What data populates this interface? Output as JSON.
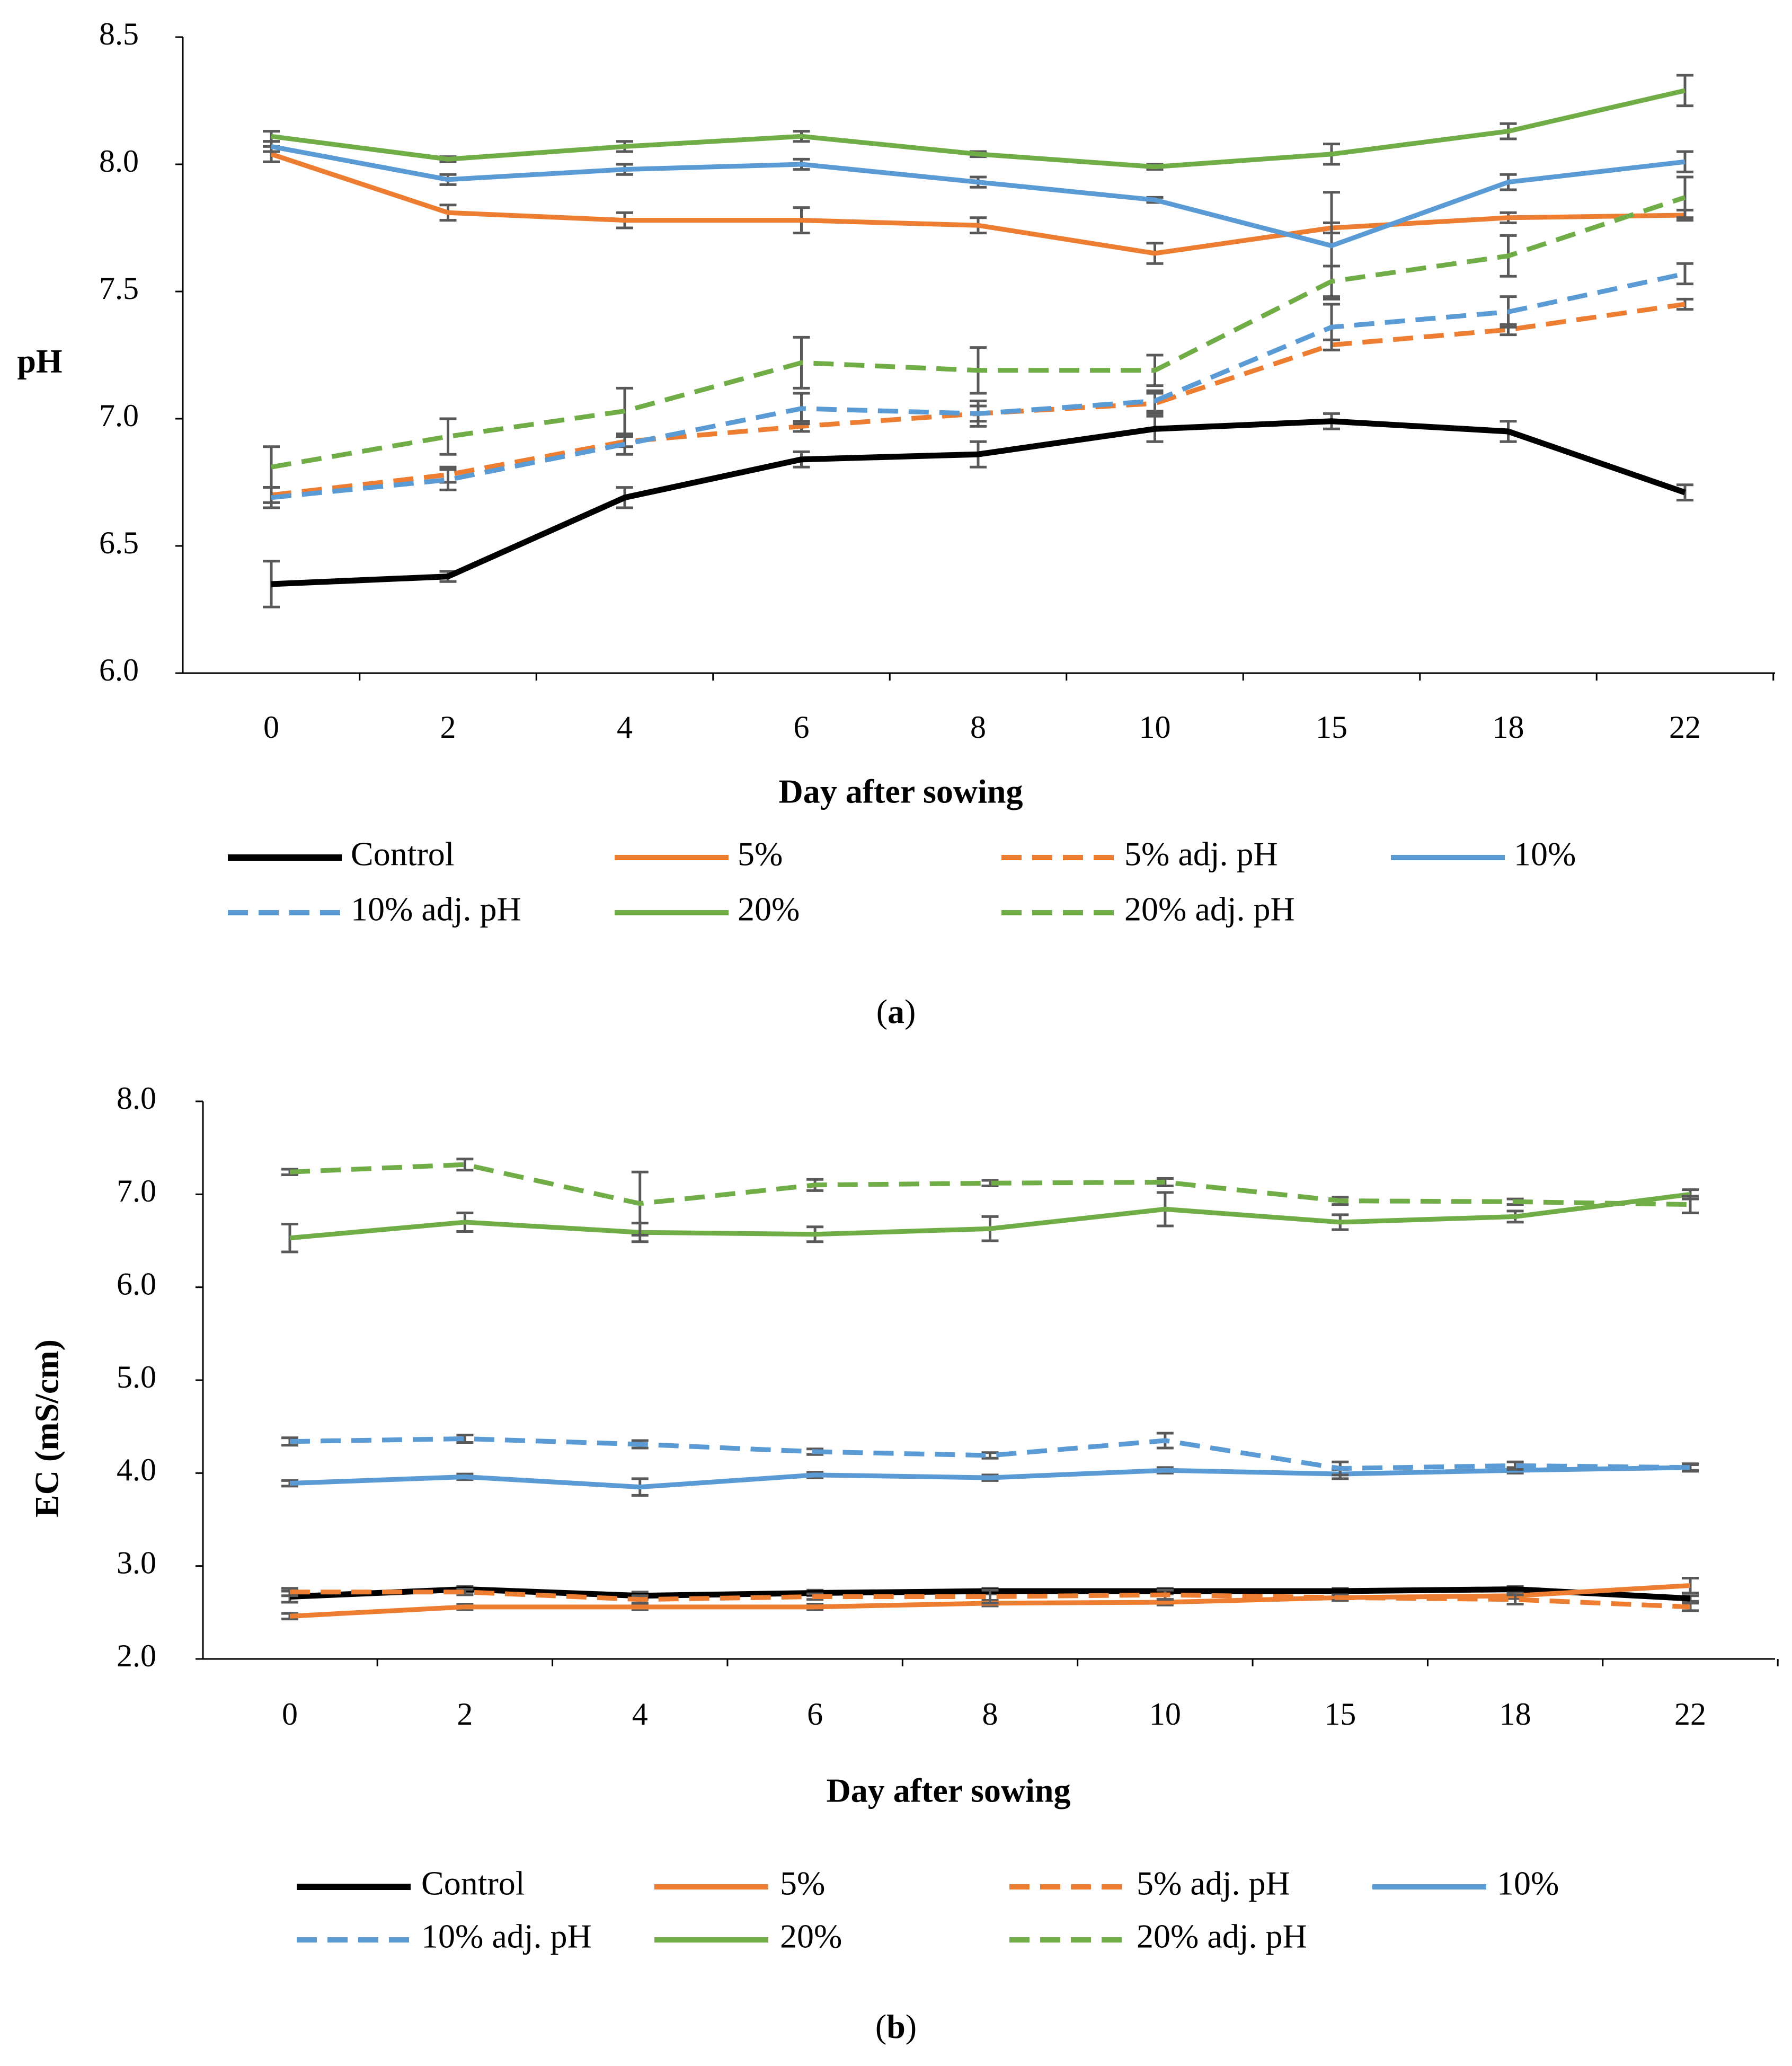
{
  "chart_data": [
    {
      "type": "line",
      "panel_label": "a",
      "title": "",
      "xlabel": "Day after sowing",
      "ylabel": "pH",
      "categories": [
        "0",
        "2",
        "4",
        "6",
        "8",
        "10",
        "15",
        "18",
        "22"
      ],
      "ylim": [
        6.0,
        8.5
      ],
      "yticks": [
        "6.0",
        "6.5",
        "7.0",
        "7.5",
        "8.0",
        "8.5"
      ],
      "grid": false,
      "legend_position": "bottom",
      "series": [
        {
          "name": "Control",
          "color": "#000000",
          "dash": "solid",
          "values": [
            6.35,
            6.38,
            6.69,
            6.84,
            6.86,
            6.96,
            6.99,
            6.95,
            6.71
          ],
          "errors": [
            0.09,
            0.02,
            0.04,
            0.03,
            0.05,
            0.05,
            0.03,
            0.04,
            0.03
          ]
        },
        {
          "name": "5%",
          "color": "#ED7D31",
          "dash": "solid",
          "values": [
            8.04,
            7.81,
            7.78,
            7.78,
            7.76,
            7.65,
            7.75,
            7.79,
            7.8
          ],
          "errors": [
            0.03,
            0.03,
            0.03,
            0.05,
            0.03,
            0.04,
            0.02,
            0.02,
            0.02
          ]
        },
        {
          "name": "5% adj. pH",
          "color": "#ED7D31",
          "dash": "dashed",
          "values": [
            6.7,
            6.78,
            6.91,
            6.97,
            7.02,
            7.06,
            7.29,
            7.35,
            7.45
          ],
          "errors": [
            0.03,
            0.03,
            0.02,
            0.02,
            0.03,
            0.04,
            0.02,
            0.02,
            0.02
          ]
        },
        {
          "name": "10%",
          "color": "#5B9BD5",
          "dash": "solid",
          "values": [
            8.07,
            7.94,
            7.98,
            8.0,
            7.93,
            7.86,
            7.68,
            7.93,
            8.01
          ],
          "errors": [
            0.02,
            0.02,
            0.02,
            0.02,
            0.02,
            0.01,
            0.21,
            0.03,
            0.04
          ]
        },
        {
          "name": "10% adj. pH",
          "color": "#5B9BD5",
          "dash": "dashed",
          "values": [
            6.69,
            6.76,
            6.9,
            7.04,
            7.02,
            7.07,
            7.36,
            7.42,
            7.57
          ],
          "errors": [
            0.04,
            0.04,
            0.04,
            0.06,
            0.05,
            0.04,
            0.09,
            0.06,
            0.04
          ]
        },
        {
          "name": "20%",
          "color": "#70AD47",
          "dash": "solid",
          "values": [
            8.11,
            8.02,
            8.07,
            8.11,
            8.04,
            7.99,
            8.04,
            8.13,
            8.29
          ],
          "errors": [
            0.02,
            0.01,
            0.02,
            0.02,
            0.01,
            0.01,
            0.04,
            0.03,
            0.06
          ]
        },
        {
          "name": "20% adj. pH",
          "color": "#70AD47",
          "dash": "dashed",
          "values": [
            6.81,
            6.93,
            7.03,
            7.22,
            7.19,
            7.19,
            7.54,
            7.64,
            7.87
          ],
          "errors": [
            0.08,
            0.07,
            0.09,
            0.1,
            0.09,
            0.06,
            0.06,
            0.08,
            0.08
          ]
        }
      ]
    },
    {
      "type": "line",
      "panel_label": "b",
      "title": "",
      "xlabel": "Day after sowing",
      "ylabel": "EC (mS/cm)",
      "categories": [
        "0",
        "2",
        "4",
        "6",
        "8",
        "10",
        "15",
        "18",
        "22"
      ],
      "ylim": [
        2.0,
        8.0
      ],
      "yticks": [
        "2.0",
        "3.0",
        "4.0",
        "5.0",
        "6.0",
        "7.0",
        "8.0"
      ],
      "grid": false,
      "legend_position": "bottom",
      "series": [
        {
          "name": "Control",
          "color": "#000000",
          "dash": "solid",
          "values": [
            2.67,
            2.75,
            2.68,
            2.71,
            2.73,
            2.73,
            2.73,
            2.75,
            2.65
          ],
          "errors": [
            0.06,
            0.03,
            0.04,
            0.03,
            0.03,
            0.03,
            0.03,
            0.03,
            0.03
          ]
        },
        {
          "name": "5%",
          "color": "#ED7D31",
          "dash": "solid",
          "values": [
            2.46,
            2.56,
            2.56,
            2.56,
            2.6,
            2.61,
            2.66,
            2.68,
            2.79
          ],
          "errors": [
            0.03,
            0.03,
            0.03,
            0.03,
            0.03,
            0.03,
            0.03,
            0.03,
            0.08
          ]
        },
        {
          "name": "5% adj. pH",
          "color": "#ED7D31",
          "dash": "dashed",
          "values": [
            2.72,
            2.72,
            2.64,
            2.67,
            2.67,
            2.69,
            2.66,
            2.64,
            2.56
          ],
          "errors": [
            0.04,
            0.03,
            0.04,
            0.03,
            0.07,
            0.05,
            0.03,
            0.05,
            0.04
          ]
        },
        {
          "name": "10%",
          "color": "#5B9BD5",
          "dash": "solid",
          "values": [
            3.89,
            3.96,
            3.85,
            3.98,
            3.95,
            4.03,
            3.99,
            4.03,
            4.06
          ],
          "errors": [
            0.03,
            0.03,
            0.09,
            0.03,
            0.03,
            0.03,
            0.05,
            0.03,
            0.04
          ]
        },
        {
          "name": "10% adj. pH",
          "color": "#5B9BD5",
          "dash": "dashed",
          "values": [
            4.34,
            4.37,
            4.31,
            4.23,
            4.19,
            4.35,
            4.05,
            4.08,
            4.06
          ],
          "errors": [
            0.04,
            0.04,
            0.04,
            0.03,
            0.03,
            0.08,
            0.07,
            0.04,
            0.03
          ]
        },
        {
          "name": "20%",
          "color": "#70AD47",
          "dash": "solid",
          "values": [
            6.53,
            6.7,
            6.59,
            6.57,
            6.63,
            6.84,
            6.7,
            6.76,
            7.0
          ],
          "errors": [
            0.15,
            0.1,
            0.1,
            0.08,
            0.13,
            0.18,
            0.08,
            0.06,
            0.05
          ]
        },
        {
          "name": "20% adj. pH",
          "color": "#70AD47",
          "dash": "dashed",
          "values": [
            7.24,
            7.32,
            6.9,
            7.1,
            7.12,
            7.13,
            6.93,
            6.92,
            6.89
          ],
          "errors": [
            0.03,
            0.06,
            0.34,
            0.06,
            0.03,
            0.04,
            0.04,
            0.03,
            0.09
          ]
        }
      ]
    }
  ]
}
